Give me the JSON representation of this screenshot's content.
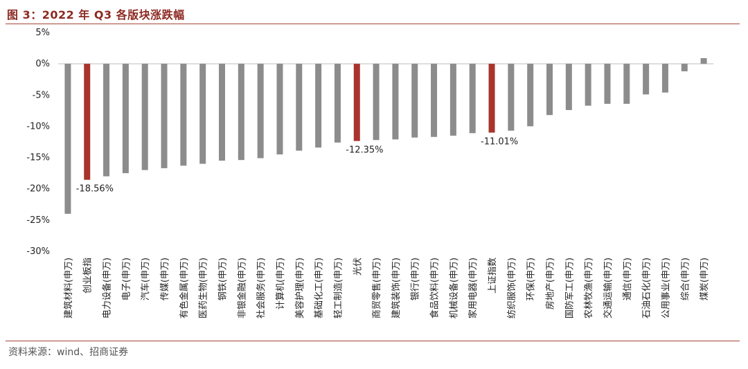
{
  "header": {
    "title": "图 3：2022 年 Q3 各版块涨跌幅"
  },
  "footer": {
    "source": "资料来源：wind、招商证券"
  },
  "colors": {
    "gray": "#8c8c8c",
    "highlight": "#a8342c",
    "rule": "#a54535",
    "title": "#8b2a22"
  },
  "chart_data": {
    "type": "bar",
    "title": "2022 年 Q3 各版块涨跌幅",
    "ylim": [
      -30,
      5
    ],
    "yticks": [
      5,
      0,
      -5,
      -10,
      -15,
      -20,
      -25,
      -30
    ],
    "ytick_labels": [
      "5%",
      "0%",
      "-5%",
      "-10%",
      "-15%",
      "-20%",
      "-25%",
      "-30%"
    ],
    "categories": [
      "建筑材料(申万)",
      "创业板指",
      "电力设备(申万)",
      "电子(申万)",
      "汽车(申万)",
      "传媒(申万)",
      "有色金属(申万)",
      "医药生物(申万)",
      "钢铁(申万)",
      "非银金融(申万)",
      "社会服务(申万)",
      "计算机(申万)",
      "美容护理(申万)",
      "基础化工(申万)",
      "轻工制造(申万)",
      "光伏",
      "商贸零售(申万)",
      "建筑装饰(申万)",
      "银行(申万)",
      "食品饮料(申万)",
      "机械设备(申万)",
      "家用电器(申万)",
      "上证指数",
      "纺织服饰(申万)",
      "环保(申万)",
      "房地产(申万)",
      "国防军工(申万)",
      "农林牧渔(申万)",
      "交通运输(申万)",
      "通信(申万)",
      "石油石化(申万)",
      "公用事业(申万)",
      "综合(申万)",
      "煤炭(申万)"
    ],
    "values": [
      -24.0,
      -18.56,
      -18.0,
      -17.5,
      -17.0,
      -16.7,
      -16.3,
      -16.0,
      -15.5,
      -15.4,
      -15.1,
      -14.5,
      -13.9,
      -13.4,
      -12.6,
      -12.35,
      -12.2,
      -12.1,
      -11.8,
      -11.7,
      -11.5,
      -11.1,
      -11.01,
      -10.7,
      -10.0,
      -8.2,
      -7.4,
      -6.7,
      -6.4,
      -6.4,
      -4.9,
      -4.6,
      -1.2,
      0.9
    ],
    "highlighted": [
      "创业板指",
      "光伏",
      "上证指数"
    ],
    "data_labels": [
      {
        "category": "创业板指",
        "text": "-18.56%"
      },
      {
        "category": "光伏",
        "text": "-12.35%"
      },
      {
        "category": "上证指数",
        "text": "-11.01%"
      }
    ],
    "xlabel": "",
    "ylabel": "",
    "grid": false,
    "legend": "none"
  }
}
